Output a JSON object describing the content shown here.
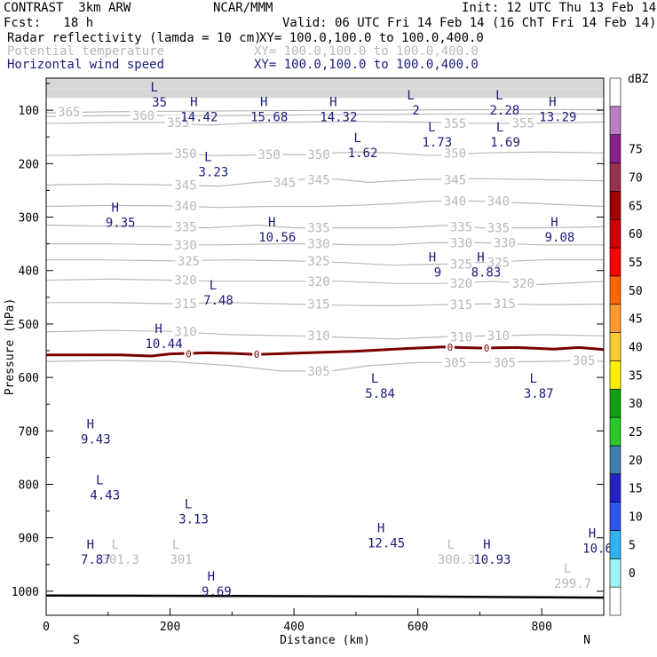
{
  "header": {
    "model": "CONTRAST  3km ARW",
    "source": "NCAR/MMM",
    "init": "Init: 12 UTC Thu 13 Feb 14",
    "fcst": "Fcst:   18 h",
    "valid": "Valid: 06 UTC Fri 14 Feb 14 (16 ChT Fri 14 Feb 14)",
    "fields": [
      {
        "name": "Radar reflectivity (lamda = 10 cm)",
        "xy": "XY= 100.0,100.0 to 100.0,400.0",
        "color": "#000000"
      },
      {
        "name": "Potential temperature",
        "xy": "XY= 100.0,100.0 to 100.0,400.0",
        "color": "#b8b8b8"
      },
      {
        "name": "Horizontal wind speed",
        "xy": "XY= 100.0,100.0 to 100.0,400.0",
        "color": "#1a1a7a"
      }
    ]
  },
  "chart_data": {
    "type": "cross-section",
    "xlabel": "Distance (km)",
    "ylabel": "Pressure (hPa)",
    "xlim": [
      0,
      900
    ],
    "ylim": [
      1045,
      40
    ],
    "xticks": [
      0,
      200,
      400,
      600,
      800
    ],
    "yticks": [
      100,
      200,
      300,
      400,
      500,
      600,
      700,
      800,
      900,
      1000
    ],
    "x_ends": {
      "left": "S",
      "right": "N"
    },
    "theta_contours": [
      {
        "label": "365",
        "points": [
          [
            0,
            105
          ],
          [
            100,
            103
          ],
          [
            200,
            102
          ],
          [
            350,
            101
          ],
          [
            500,
            100
          ],
          [
            700,
            99
          ],
          [
            900,
            99
          ]
        ]
      },
      {
        "label": "360",
        "points": [
          [
            0,
            112
          ],
          [
            100,
            110
          ],
          [
            150,
            110
          ],
          [
            300,
            110
          ],
          [
            500,
            108
          ],
          [
            700,
            107
          ],
          [
            900,
            107
          ]
        ]
      },
      {
        "label": "355",
        "points": [
          [
            0,
            125
          ],
          [
            100,
            123
          ],
          [
            200,
            123
          ],
          [
            260,
            128
          ],
          [
            350,
            123
          ],
          [
            500,
            121
          ],
          [
            650,
            123
          ],
          [
            700,
            125
          ],
          [
            800,
            124
          ],
          [
            900,
            122
          ]
        ]
      },
      {
        "label": "350",
        "points": [
          [
            0,
            185
          ],
          [
            100,
            183
          ],
          [
            200,
            181
          ],
          [
            280,
            185
          ],
          [
            360,
            183
          ],
          [
            420,
            183
          ],
          [
            500,
            178
          ],
          [
            560,
            180
          ],
          [
            620,
            185
          ],
          [
            700,
            180
          ],
          [
            800,
            178
          ],
          [
            900,
            180
          ]
        ]
      },
      {
        "label": "345",
        "points": [
          [
            0,
            240
          ],
          [
            100,
            238
          ],
          [
            200,
            240
          ],
          [
            280,
            242
          ],
          [
            340,
            235
          ],
          [
            400,
            230
          ],
          [
            460,
            228
          ],
          [
            520,
            235
          ],
          [
            600,
            230
          ],
          [
            700,
            228
          ],
          [
            800,
            230
          ],
          [
            900,
            232
          ]
        ]
      },
      {
        "label": "340",
        "points": [
          [
            0,
            280
          ],
          [
            100,
            278
          ],
          [
            200,
            279
          ],
          [
            280,
            282
          ],
          [
            360,
            280
          ],
          [
            440,
            280
          ],
          [
            500,
            278
          ],
          [
            560,
            275
          ],
          [
            620,
            270
          ],
          [
            700,
            270
          ],
          [
            800,
            275
          ],
          [
            900,
            280
          ]
        ]
      },
      {
        "label": "335",
        "points": [
          [
            0,
            315
          ],
          [
            100,
            317
          ],
          [
            200,
            318
          ],
          [
            260,
            320
          ],
          [
            340,
            315
          ],
          [
            400,
            320
          ],
          [
            480,
            320
          ],
          [
            560,
            320
          ],
          [
            600,
            318
          ],
          [
            660,
            315
          ],
          [
            700,
            320
          ],
          [
            800,
            320
          ],
          [
            900,
            318
          ]
        ]
      },
      {
        "label": "330",
        "points": [
          [
            0,
            350
          ],
          [
            100,
            350
          ],
          [
            200,
            352
          ],
          [
            280,
            352
          ],
          [
            380,
            350
          ],
          [
            440,
            350
          ],
          [
            500,
            352
          ],
          [
            560,
            352
          ],
          [
            620,
            348
          ],
          [
            700,
            348
          ],
          [
            800,
            352
          ],
          [
            900,
            352
          ]
        ]
      },
      {
        "label": "325",
        "points": [
          [
            0,
            380
          ],
          [
            100,
            380
          ],
          [
            200,
            382
          ],
          [
            300,
            380
          ],
          [
            400,
            382
          ],
          [
            480,
            385
          ],
          [
            560,
            390
          ],
          [
            640,
            388
          ],
          [
            700,
            385
          ],
          [
            800,
            380
          ],
          [
            900,
            380
          ]
        ]
      },
      {
        "label": "320",
        "points": [
          [
            0,
            418
          ],
          [
            100,
            416
          ],
          [
            200,
            418
          ],
          [
            280,
            420
          ],
          [
            380,
            420
          ],
          [
            480,
            420
          ],
          [
            560,
            424
          ],
          [
            640,
            424
          ],
          [
            720,
            420
          ],
          [
            800,
            426
          ],
          [
            900,
            420
          ]
        ]
      },
      {
        "label": "315",
        "points": [
          [
            0,
            460
          ],
          [
            100,
            460
          ],
          [
            200,
            462
          ],
          [
            300,
            460
          ],
          [
            400,
            463
          ],
          [
            480,
            465
          ],
          [
            560,
            466
          ],
          [
            640,
            464
          ],
          [
            720,
            462
          ],
          [
            800,
            464
          ],
          [
            900,
            463
          ]
        ]
      },
      {
        "label": "310",
        "points": [
          [
            0,
            515
          ],
          [
            100,
            512
          ],
          [
            200,
            514
          ],
          [
            300,
            520
          ],
          [
            400,
            522
          ],
          [
            480,
            525
          ],
          [
            560,
            528
          ],
          [
            640,
            524
          ],
          [
            720,
            522
          ],
          [
            800,
            520
          ],
          [
            900,
            522
          ]
        ]
      },
      {
        "label": "305",
        "points": [
          [
            0,
            570
          ],
          [
            100,
            568
          ],
          [
            200,
            570
          ],
          [
            300,
            578
          ],
          [
            380,
            588
          ],
          [
            460,
            588
          ],
          [
            520,
            578
          ],
          [
            600,
            572
          ],
          [
            700,
            572
          ],
          [
            800,
            570
          ],
          [
            880,
            568
          ],
          [
            900,
            570
          ]
        ]
      }
    ],
    "theta_contour_labels": [
      {
        "text": "365",
        "x": 37,
        "y": 103
      },
      {
        "text": "360",
        "x": 157,
        "y": 110
      },
      {
        "text": "355",
        "x": 213,
        "y": 123
      },
      {
        "text": "355",
        "x": 660,
        "y": 125
      },
      {
        "text": "355",
        "x": 770,
        "y": 124
      },
      {
        "text": "350",
        "x": 225,
        "y": 181
      },
      {
        "text": "350",
        "x": 360,
        "y": 183
      },
      {
        "text": "350",
        "x": 440,
        "y": 183
      },
      {
        "text": "350",
        "x": 660,
        "y": 180
      },
      {
        "text": "345",
        "x": 225,
        "y": 240
      },
      {
        "text": "345",
        "x": 385,
        "y": 235
      },
      {
        "text": "345",
        "x": 440,
        "y": 230
      },
      {
        "text": "345",
        "x": 660,
        "y": 230
      },
      {
        "text": "340",
        "x": 225,
        "y": 279
      },
      {
        "text": "340",
        "x": 660,
        "y": 270
      },
      {
        "text": "340",
        "x": 730,
        "y": 270
      },
      {
        "text": "335",
        "x": 225,
        "y": 318
      },
      {
        "text": "335",
        "x": 440,
        "y": 320
      },
      {
        "text": "335",
        "x": 670,
        "y": 318
      },
      {
        "text": "335",
        "x": 730,
        "y": 320
      },
      {
        "text": "330",
        "x": 225,
        "y": 352
      },
      {
        "text": "330",
        "x": 440,
        "y": 350
      },
      {
        "text": "330",
        "x": 670,
        "y": 348
      },
      {
        "text": "330",
        "x": 740,
        "y": 348
      },
      {
        "text": "325",
        "x": 230,
        "y": 382
      },
      {
        "text": "325",
        "x": 440,
        "y": 382
      },
      {
        "text": "325",
        "x": 670,
        "y": 388
      },
      {
        "text": "325",
        "x": 730,
        "y": 385
      },
      {
        "text": "320",
        "x": 225,
        "y": 418
      },
      {
        "text": "320",
        "x": 440,
        "y": 420
      },
      {
        "text": "320",
        "x": 670,
        "y": 424
      },
      {
        "text": "320",
        "x": 770,
        "y": 424
      },
      {
        "text": "315",
        "x": 225,
        "y": 462
      },
      {
        "text": "315",
        "x": 440,
        "y": 463
      },
      {
        "text": "315",
        "x": 670,
        "y": 464
      },
      {
        "text": "315",
        "x": 740,
        "y": 462
      },
      {
        "text": "310",
        "x": 225,
        "y": 514
      },
      {
        "text": "310",
        "x": 440,
        "y": 522
      },
      {
        "text": "310",
        "x": 670,
        "y": 524
      },
      {
        "text": "310",
        "x": 730,
        "y": 522
      },
      {
        "text": "305",
        "x": 440,
        "y": 588
      },
      {
        "text": "305",
        "x": 660,
        "y": 572
      },
      {
        "text": "305",
        "x": 740,
        "y": 572
      },
      {
        "text": "305",
        "x": 868,
        "y": 568
      }
    ],
    "freezing_level": {
      "points": [
        [
          0,
          558
        ],
        [
          120,
          558
        ],
        [
          170,
          560
        ],
        [
          200,
          556
        ],
        [
          260,
          554
        ],
        [
          300,
          555
        ],
        [
          340,
          557
        ],
        [
          420,
          554
        ],
        [
          500,
          551
        ],
        [
          580,
          546
        ],
        [
          640,
          543
        ],
        [
          700,
          545
        ],
        [
          760,
          544
        ],
        [
          820,
          547
        ],
        [
          860,
          544
        ],
        [
          900,
          548
        ]
      ],
      "labels": [
        {
          "text": "0",
          "x": 230,
          "y": 556
        },
        {
          "text": "0",
          "x": 340,
          "y": 557
        },
        {
          "text": "0",
          "x": 652,
          "y": 543
        },
        {
          "text": "0",
          "x": 711,
          "y": 545
        }
      ],
      "color": "#7a0000"
    },
    "surface": {
      "points": [
        [
          0,
          1008
        ],
        [
          300,
          1009
        ],
        [
          600,
          1010
        ],
        [
          900,
          1012
        ]
      ]
    },
    "wind_extrema": [
      {
        "type": "L",
        "value": "35",
        "x": 183,
        "y": 70
      },
      {
        "type": "H",
        "value": "14.42",
        "x": 247,
        "y": 97
      },
      {
        "type": "H",
        "value": "15.68",
        "x": 360,
        "y": 97
      },
      {
        "type": "H",
        "value": "14.32",
        "x": 472,
        "y": 97
      },
      {
        "type": "L",
        "value": "2",
        "x": 597,
        "y": 85
      },
      {
        "type": "L",
        "value": "2.28",
        "x": 740,
        "y": 85
      },
      {
        "type": "H",
        "value": "13.29",
        "x": 826,
        "y": 97
      },
      {
        "type": "L",
        "value": "1.62",
        "x": 511,
        "y": 165
      },
      {
        "type": "L",
        "value": "1.73",
        "x": 631,
        "y": 145
      },
      {
        "type": "L",
        "value": "1.69",
        "x": 741,
        "y": 145
      },
      {
        "type": "L",
        "value": "3.23",
        "x": 270,
        "y": 200
      },
      {
        "type": "H",
        "value": "9.35",
        "x": 120,
        "y": 295
      },
      {
        "type": "H",
        "value": "10.56",
        "x": 373,
        "y": 322
      },
      {
        "type": "H",
        "value": "9.08",
        "x": 829,
        "y": 322
      },
      {
        "type": "H",
        "value": "9",
        "x": 632,
        "y": 388
      },
      {
        "type": "H",
        "value": "8.83",
        "x": 710,
        "y": 388
      },
      {
        "type": "L",
        "value": "7.48",
        "x": 278,
        "y": 440
      },
      {
        "type": "H",
        "value": "10.44",
        "x": 190,
        "y": 522
      },
      {
        "type": "L",
        "value": "5.84",
        "x": 539,
        "y": 615
      },
      {
        "type": "L",
        "value": "3.87",
        "x": 795,
        "y": 615
      },
      {
        "type": "H",
        "value": "9.43",
        "x": 80,
        "y": 700
      },
      {
        "type": "L",
        "value": "4.43",
        "x": 95,
        "y": 805
      },
      {
        "type": "L",
        "value": "3.13",
        "x": 238,
        "y": 850
      },
      {
        "type": "H",
        "value": "12.45",
        "x": 549,
        "y": 895
      },
      {
        "type": "H",
        "value": "7.87",
        "x": 80,
        "y": 925
      },
      {
        "type": "H",
        "value": "10.93",
        "x": 720,
        "y": 925
      },
      {
        "type": "H",
        "value": "10.6",
        "x": 890,
        "y": 905
      },
      {
        "type": "H",
        "value": "9.69",
        "x": 275,
        "y": 985
      }
    ],
    "theta_extrema": [
      {
        "type": "L",
        "value": "301.3",
        "x": 120,
        "y": 925
      },
      {
        "type": "L",
        "value": "301",
        "x": 218,
        "y": 925
      },
      {
        "type": "L",
        "value": "300.3",
        "x": 662,
        "y": 925
      },
      {
        "type": "L",
        "value": "299.7",
        "x": 850,
        "y": 970
      }
    ],
    "colorbar": {
      "unit": "dBZ",
      "levels": [
        0,
        5,
        10,
        15,
        20,
        25,
        30,
        35,
        40,
        45,
        50,
        55,
        60,
        65,
        70,
        75
      ],
      "colors": [
        "#ffffff",
        "#9ff5f8",
        "#30b3f0",
        "#2a56f0",
        "#2222c8",
        "#3e7fb0",
        "#28c828",
        "#0f9f0f",
        "#fff000",
        "#ffcc33",
        "#ff9a33",
        "#ff6600",
        "#ff0000",
        "#cc0000",
        "#a00000",
        "#9a3050",
        "#8a2090",
        "#b880c0",
        "#ffffff"
      ]
    }
  }
}
